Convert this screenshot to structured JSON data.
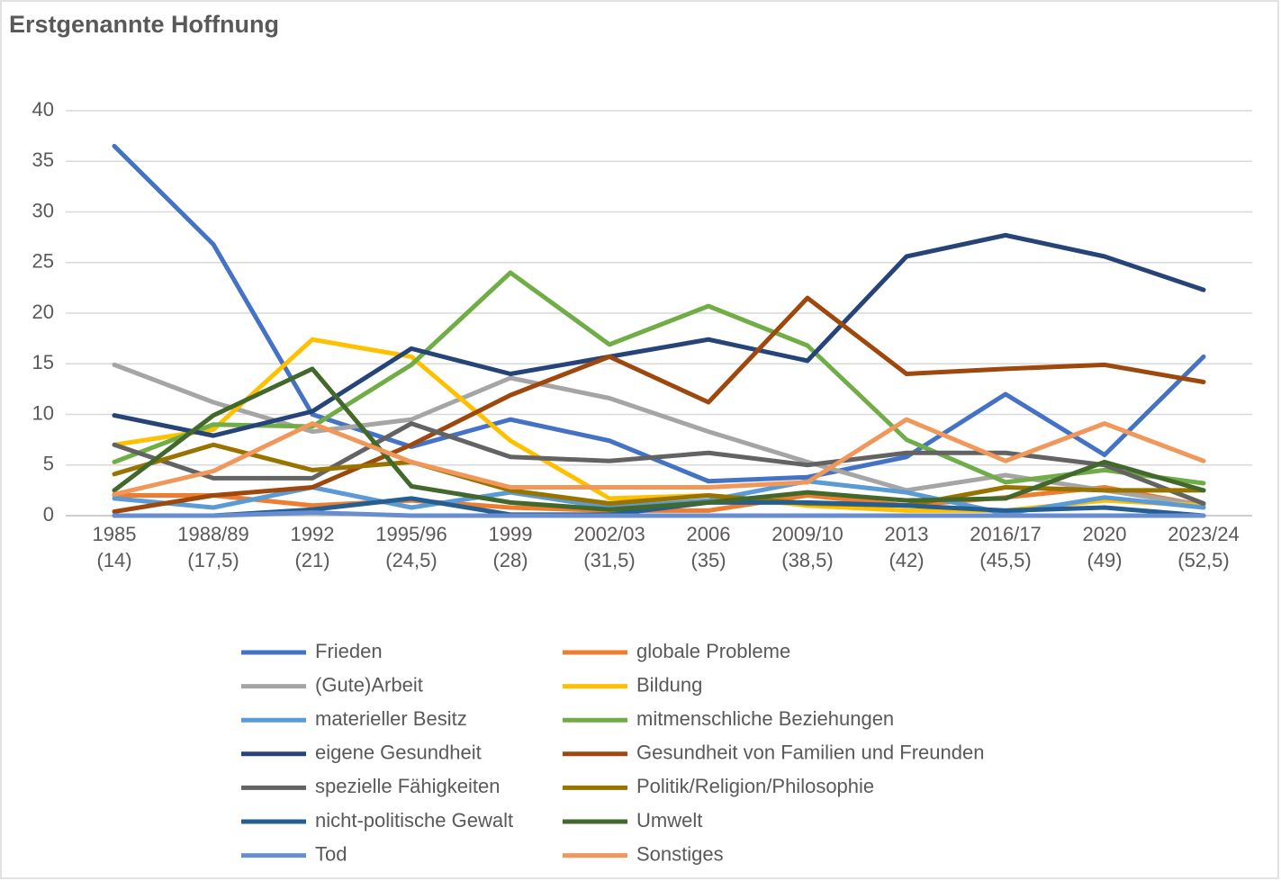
{
  "chart_data": {
    "type": "line",
    "title": "Erstgenannte Hoffnung",
    "categories": [
      "1985\n(14)",
      "1988/89\n(17,5)",
      "1992\n(21)",
      "1995/96\n(24,5)",
      "1999\n(28)",
      "2002/03\n(31,5)",
      "2006\n(35)",
      "2009/10\n(38,5)",
      "2013\n(42)",
      "2016/17\n(45,5)",
      "2020\n(49)",
      "2023/24\n(52,5)"
    ],
    "ylim": [
      0,
      40
    ],
    "yticks": [
      0,
      5,
      10,
      15,
      20,
      25,
      30,
      35,
      40
    ],
    "grid": true,
    "series": [
      {
        "name": "Frieden",
        "color": "#4472c4",
        "values": [
          36.5,
          26.8,
          10,
          6.8,
          9.5,
          7.4,
          3.4,
          3.8,
          5.8,
          12,
          6,
          15.7
        ]
      },
      {
        "name": "globale Probleme",
        "color": "#ed7d31",
        "values": [
          2,
          2,
          1,
          1.5,
          0.8,
          0.5,
          0.5,
          2,
          1,
          1.8,
          2.8,
          1
        ]
      },
      {
        "name": "(Gute)Arbeit",
        "color": "#a5a5a5",
        "values": [
          14.9,
          11.2,
          8.3,
          9.5,
          13.6,
          11.6,
          8.3,
          5.3,
          2.5,
          4,
          2.5,
          1
        ]
      },
      {
        "name": "Bildung",
        "color": "#ffc000",
        "values": [
          7,
          8.5,
          17.4,
          15.7,
          7.4,
          1.7,
          2,
          1,
          0.5,
          0.5,
          1.5,
          1
        ]
      },
      {
        "name": "materieller Besitz",
        "color": "#5b9bd5",
        "values": [
          1.7,
          0.8,
          2.8,
          0.8,
          2.3,
          0.8,
          1.5,
          3.4,
          2.3,
          0.2,
          1.8,
          0.8
        ]
      },
      {
        "name": "mitmenschliche Beziehungen",
        "color": "#70ad47",
        "values": [
          5.3,
          9,
          8.8,
          14.9,
          24,
          16.9,
          20.7,
          16.8,
          7.5,
          3.3,
          4.5,
          3.2
        ]
      },
      {
        "name": "eigene Gesundheit",
        "color": "#264478",
        "values": [
          9.9,
          7.9,
          10.3,
          16.5,
          14,
          15.7,
          17.4,
          15.3,
          25.6,
          27.7,
          25.6,
          22.3
        ]
      },
      {
        "name": "Gesundheit von Familien und Freunden",
        "color": "#9e480e",
        "values": [
          0.4,
          2,
          2.8,
          7,
          11.9,
          15.7,
          11.2,
          21.5,
          14,
          14.5,
          14.9,
          13.2
        ]
      },
      {
        "name": "spezielle Fähigkeiten",
        "color": "#636363",
        "values": [
          7,
          3.7,
          3.7,
          9.1,
          5.8,
          5.4,
          6.2,
          5,
          6.2,
          6.2,
          5,
          1.2
        ]
      },
      {
        "name": "Politik/Religion/Philosophie",
        "color": "#997300",
        "values": [
          4.1,
          7,
          4.5,
          5.3,
          2.5,
          1.2,
          2,
          1.2,
          1,
          2.8,
          2.5,
          2.5
        ]
      },
      {
        "name": "nicht-politische Gewalt",
        "color": "#255e91",
        "values": [
          0,
          0,
          0.6,
          1.7,
          0.1,
          0.1,
          1.3,
          1.3,
          1,
          0.5,
          0.8,
          0
        ]
      },
      {
        "name": "Umwelt",
        "color": "#43682b",
        "values": [
          2.5,
          9.9,
          14.5,
          2.9,
          1.3,
          0.6,
          1.3,
          2.3,
          1.5,
          1.7,
          5.3,
          2.5
        ]
      },
      {
        "name": "Tod",
        "color": "#698ed0",
        "values": [
          0,
          0,
          0.3,
          0,
          0,
          0,
          0,
          0,
          0,
          0,
          0,
          0
        ]
      },
      {
        "name": "Sonstiges",
        "color": "#f1975a",
        "values": [
          2.1,
          4.4,
          9.1,
          5.3,
          2.8,
          2.8,
          2.8,
          3.3,
          9.5,
          5.4,
          9.1,
          5.4
        ]
      }
    ]
  }
}
